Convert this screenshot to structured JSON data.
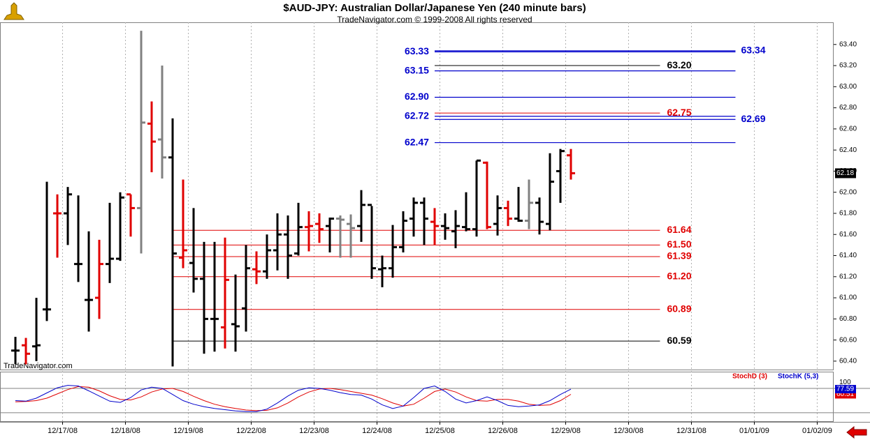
{
  "chart_data": [
    {
      "type": "ohlc",
      "title": "$AUD-JPY:  Australian Dollar/Japanese Yen  (240 minute bars)",
      "subtitle": "TradeNavigator.com © 1999-2008 All rights reserved",
      "watermark": "TradeNavigator.com",
      "x": [
        0,
        1,
        2,
        3,
        4,
        5,
        6,
        7,
        8,
        9,
        10,
        11,
        12,
        13,
        14,
        15,
        16,
        17,
        18,
        19,
        20,
        21,
        22,
        23,
        24,
        25,
        26,
        27,
        28,
        29,
        30,
        31,
        32,
        33,
        34,
        35,
        36,
        37,
        38,
        39,
        40,
        41,
        42,
        43,
        44,
        45,
        46,
        47,
        48,
        49,
        50,
        51,
        52,
        53
      ],
      "open": [
        60.5,
        60.55,
        60.54,
        60.89,
        61.8,
        61.8,
        61.32,
        60.98,
        61.0,
        61.32,
        61.37,
        61.98,
        61.85,
        62.65,
        62.5,
        62.33,
        61.38,
        61.33,
        61.18,
        60.8,
        60.72,
        60.75,
        60.9,
        61.27,
        61.25,
        61.45,
        61.6,
        61.42,
        61.67,
        61.7,
        61.68,
        61.75,
        61.7,
        61.68,
        61.88,
        61.27,
        61.28,
        61.48,
        61.75,
        61.9,
        61.72,
        61.68,
        61.63,
        61.67,
        61.65,
        62.28,
        61.7,
        61.85,
        61.75,
        61.73,
        61.9,
        61.7,
        62.2,
        62.35
      ],
      "high": [
        60.63,
        60.62,
        61.0,
        62.1,
        61.98,
        62.05,
        61.97,
        61.63,
        61.55,
        61.9,
        62.0,
        61.98,
        63.53,
        62.86,
        63.2,
        62.7,
        62.12,
        61.85,
        61.53,
        61.53,
        61.57,
        61.22,
        61.5,
        61.44,
        61.6,
        61.8,
        61.78,
        61.9,
        61.82,
        61.8,
        61.76,
        61.78,
        61.79,
        62.02,
        61.87,
        61.4,
        61.69,
        61.82,
        61.95,
        61.95,
        61.85,
        61.8,
        61.83,
        62.0,
        62.3,
        62.29,
        61.97,
        61.92,
        62.05,
        62.12,
        61.95,
        62.37,
        62.41,
        62.41
      ],
      "low": [
        60.37,
        60.37,
        60.4,
        60.78,
        61.38,
        61.5,
        61.15,
        60.68,
        60.8,
        61.14,
        61.35,
        61.58,
        61.42,
        62.19,
        62.13,
        60.35,
        61.28,
        61.05,
        60.47,
        60.49,
        60.52,
        60.49,
        60.68,
        61.13,
        61.18,
        61.26,
        61.18,
        61.4,
        61.44,
        61.52,
        61.43,
        61.38,
        61.38,
        61.53,
        61.18,
        61.1,
        61.19,
        61.43,
        61.58,
        61.5,
        61.5,
        61.55,
        61.47,
        61.63,
        61.58,
        61.65,
        61.59,
        61.68,
        61.72,
        61.65,
        61.6,
        61.64,
        61.9,
        62.12
      ],
      "close": [
        60.5,
        60.47,
        60.55,
        60.89,
        61.8,
        61.98,
        61.32,
        60.98,
        61.32,
        61.37,
        61.95,
        61.85,
        62.66,
        62.48,
        62.33,
        61.42,
        61.45,
        61.18,
        60.8,
        60.8,
        61.17,
        60.73,
        61.28,
        61.25,
        61.45,
        61.6,
        61.4,
        61.67,
        61.68,
        61.65,
        61.75,
        61.74,
        61.66,
        61.88,
        61.28,
        61.28,
        61.48,
        61.73,
        61.9,
        61.75,
        61.68,
        61.66,
        61.68,
        61.65,
        62.3,
        61.67,
        61.85,
        61.75,
        61.73,
        61.9,
        61.72,
        62.1,
        62.39,
        62.18
      ],
      "colors": [
        "#000000",
        "#e00000",
        "#000000",
        "#000000",
        "#e00000",
        "#000000",
        "#000000",
        "#000000",
        "#e00000",
        "#000000",
        "#000000",
        "#e00000",
        "#808080",
        "#e00000",
        "#808080",
        "#000000",
        "#e00000",
        "#000000",
        "#000000",
        "#000000",
        "#e00000",
        "#000000",
        "#000000",
        "#e00000",
        "#000000",
        "#000000",
        "#000000",
        "#000000",
        "#e00000",
        "#e00000",
        "#000000",
        "#808080",
        "#808080",
        "#000000",
        "#000000",
        "#000000",
        "#000000",
        "#000000",
        "#000000",
        "#000000",
        "#e00000",
        "#000000",
        "#000000",
        "#000000",
        "#000000",
        "#e00000",
        "#000000",
        "#e00000",
        "#000000",
        "#808080",
        "#000000",
        "#000000",
        "#000000",
        "#e00000"
      ],
      "xlim": [
        -1.47,
        78.07
      ],
      "xticks": [
        {
          "value": 4.5,
          "label": "12/17/08"
        },
        {
          "value": 10.5,
          "label": "12/18/08"
        },
        {
          "value": 16.5,
          "label": "12/19/08"
        },
        {
          "value": 22.5,
          "label": "12/22/08"
        },
        {
          "value": 28.5,
          "label": "12/23/08"
        },
        {
          "value": 34.5,
          "label": "12/24/08"
        },
        {
          "value": 40.5,
          "label": "12/25/08"
        },
        {
          "value": 46.5,
          "label": "12/26/08"
        },
        {
          "value": 52.5,
          "label": "12/29/08"
        },
        {
          "value": 58.5,
          "label": "12/30/08"
        },
        {
          "value": 64.5,
          "label": "12/31/08"
        },
        {
          "value": 70.5,
          "label": "01/01/09"
        },
        {
          "value": 76.5,
          "label": "01/02/09"
        }
      ],
      "ylim": [
        60.32,
        63.61
      ],
      "yticks": [
        {
          "value": 60.4,
          "label": "60.40"
        },
        {
          "value": 60.6,
          "label": "60.60"
        },
        {
          "value": 60.8,
          "label": "60.80"
        },
        {
          "value": 61.0,
          "label": "61.00"
        },
        {
          "value": 61.2,
          "label": "61.20"
        },
        {
          "value": 61.4,
          "label": "61.40"
        },
        {
          "value": 61.6,
          "label": "61.60"
        },
        {
          "value": 61.8,
          "label": "61.80"
        },
        {
          "value": 62.0,
          "label": "62.00"
        },
        {
          "value": 62.2,
          "label": "62.20"
        },
        {
          "value": 62.4,
          "label": "62.40"
        },
        {
          "value": 62.6,
          "label": "62.60"
        },
        {
          "value": 62.8,
          "label": "62.80"
        },
        {
          "value": 63.0,
          "label": "63.00"
        },
        {
          "value": 63.2,
          "label": "63.20"
        },
        {
          "value": 63.4,
          "label": "63.40"
        }
      ],
      "projection_levels": [
        {
          "value": 63.33,
          "label": "63.33",
          "color": "#0000cc",
          "label_side": "left"
        },
        {
          "value": 63.34,
          "label": "63.34",
          "color": "#0000cc",
          "label_side": "right"
        },
        {
          "value": 63.2,
          "label": "63.20",
          "color": "#000000",
          "label_side": "end"
        },
        {
          "value": 63.15,
          "label": "63.15",
          "color": "#0000cc",
          "label_side": "left"
        },
        {
          "value": 62.9,
          "label": "62.90",
          "color": "#0000cc",
          "label_side": "left"
        },
        {
          "value": 62.75,
          "label": "62.75",
          "color": "#e00000",
          "label_side": "end"
        },
        {
          "value": 62.72,
          "label": "62.72",
          "color": "#0000cc",
          "label_side": "left"
        },
        {
          "value": 62.69,
          "label": "62.69",
          "color": "#0000cc",
          "label_side": "right"
        },
        {
          "value": 62.47,
          "label": "62.47",
          "color": "#0000cc",
          "label_side": "left"
        }
      ],
      "retracement_levels": [
        {
          "value": 61.64,
          "label": "61.64",
          "color": "#e00000",
          "label_side": "end"
        },
        {
          "value": 61.5,
          "label": "61.50",
          "color": "#e00000",
          "label_side": "end"
        },
        {
          "value": 61.39,
          "label": "61.39",
          "color": "#e00000",
          "label_side": "end"
        },
        {
          "value": 61.2,
          "label": "61.20",
          "color": "#e00000",
          "label_side": "end"
        },
        {
          "value": 60.89,
          "label": "60.89",
          "color": "#e00000",
          "label_side": "end"
        },
        {
          "value": 60.59,
          "label": "60.59",
          "color": "#000000",
          "label_side": "end"
        }
      ],
      "grid": true
    },
    {
      "type": "line",
      "ylim": [
        -30,
        135
      ],
      "yticks": [
        100
      ],
      "reference_lines": [
        80,
        0
      ],
      "series": [
        {
          "name": "StochD (3)",
          "color": "#e00000",
          "values": [
            36,
            37,
            40,
            48,
            62,
            76,
            86,
            84,
            72,
            56,
            44,
            42,
            52,
            68,
            78,
            80,
            70,
            54,
            40,
            28,
            20,
            14,
            9,
            7,
            8,
            16,
            32,
            52,
            68,
            78,
            80,
            76,
            70,
            64,
            58,
            46,
            32,
            22,
            28,
            48,
            70,
            78,
            68,
            52,
            40,
            38,
            44,
            44,
            38,
            28,
            24,
            26,
            40,
            60.51
          ]
        },
        {
          "name": "StochK (5,3)",
          "color": "#0000cc",
          "values": [
            40,
            38,
            48,
            65,
            82,
            90,
            88,
            72,
            55,
            38,
            34,
            50,
            75,
            84,
            80,
            60,
            40,
            28,
            20,
            14,
            10,
            6,
            4,
            4,
            12,
            32,
            55,
            74,
            82,
            80,
            74,
            66,
            60,
            58,
            45,
            26,
            14,
            22,
            50,
            80,
            88,
            70,
            45,
            32,
            40,
            52,
            40,
            24,
            20,
            22,
            26,
            40,
            60,
            77.59
          ]
        }
      ]
    }
  ]
}
